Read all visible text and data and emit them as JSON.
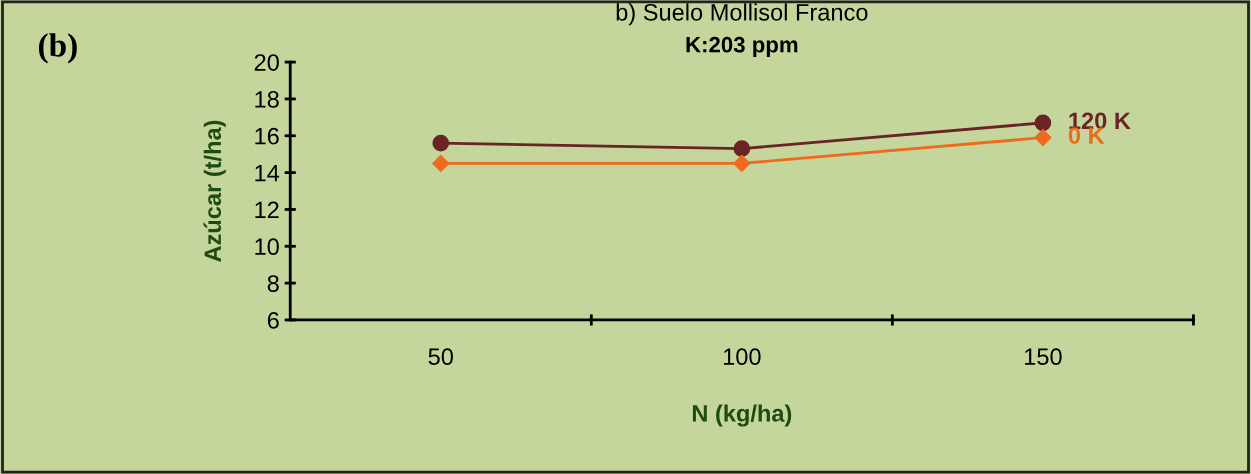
{
  "chart_data": {
    "type": "line",
    "title": "b) Suelo Mollisol Franco",
    "subtitle": "K:203 ppm",
    "xlabel": "N (kg/ha)",
    "ylabel": "Azúcar (t/ha)",
    "annotations": [
      "(b)"
    ],
    "categories": [
      "50",
      "100",
      "150"
    ],
    "series": [
      {
        "name": "120 K",
        "color": "#6b2426",
        "marker": "circle",
        "values": [
          15.6,
          15.3,
          16.7
        ]
      },
      {
        "name": "0 K",
        "color": "#f06a1e",
        "marker": "diamond",
        "values": [
          14.5,
          14.5,
          15.9
        ]
      }
    ],
    "ylim": [
      6,
      20
    ],
    "yticks": [
      6,
      8,
      10,
      12,
      14,
      16,
      18,
      20
    ],
    "grid": false,
    "legend": false
  }
}
